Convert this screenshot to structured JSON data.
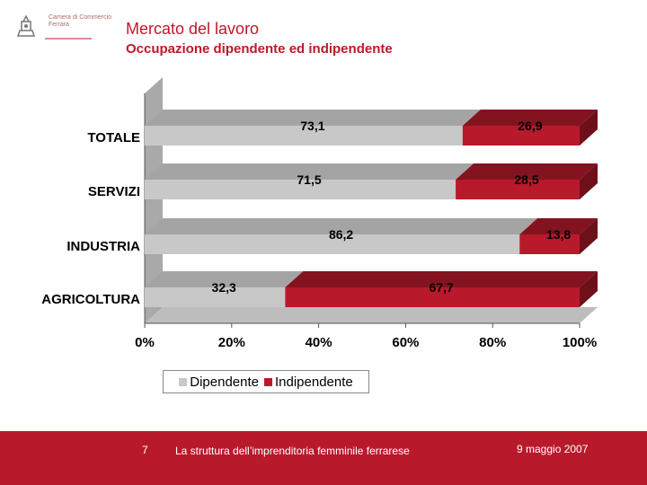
{
  "header": {
    "logo_text": "Camera di Commercio\nFerrara",
    "title": "Mercato del lavoro",
    "subtitle": "Occupazione dipendente ed indipendente"
  },
  "colors": {
    "dipendente": "#c8c8c8",
    "indipendente": "#b81a2c",
    "accent": "#c0182a"
  },
  "chart_data": {
    "type": "bar",
    "orientation": "horizontal",
    "stacked": "percent",
    "categories": [
      "TOTALE",
      "SERVIZI",
      "INDUSTRIA",
      "AGRICOLTURA"
    ],
    "series": [
      {
        "name": "Dipendente",
        "values": [
          73.1,
          71.5,
          86.2,
          32.3
        ],
        "labels": [
          "73,1",
          "71,5",
          "86,2",
          "32,3"
        ]
      },
      {
        "name": "Indipendente",
        "values": [
          26.9,
          28.5,
          13.8,
          67.7
        ],
        "labels": [
          "26,9",
          "28,5",
          "13,8",
          "67,7"
        ]
      }
    ],
    "xticks": [
      "0%",
      "20%",
      "40%",
      "60%",
      "80%",
      "100%"
    ],
    "xlim": [
      0,
      100
    ],
    "legend": "bottom",
    "title": "",
    "xlabel": "",
    "ylabel": ""
  },
  "footer": {
    "page_number": "7",
    "text": "La struttura dell’imprenditoria femminile ferrarese",
    "date": "9 maggio 2007"
  }
}
